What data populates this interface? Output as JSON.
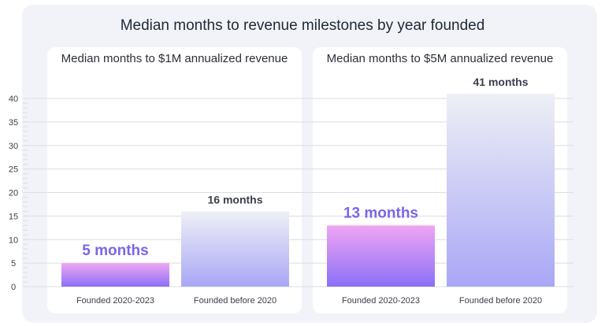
{
  "title": "Median months to revenue milestones by year founded",
  "colors": {
    "highlight_top": "#f0a6f3",
    "highlight_bottom": "#8a70f6",
    "highlight_label": "#7a66e8",
    "muted_top": "#eef0f5",
    "muted_bottom": "#a9a7f6",
    "muted_label": "#3a3f4a",
    "grid": "#d9dde6"
  },
  "chart_data": {
    "type": "bar",
    "ylim": [
      0,
      40
    ],
    "yticks": [
      0,
      5,
      10,
      15,
      20,
      25,
      30,
      35,
      40
    ],
    "panels": [
      {
        "title": "Median months to $1M annualized revenue",
        "categories": [
          "Founded 2020-2023",
          "Founded before 2020"
        ],
        "values": [
          5,
          16
        ],
        "labels": [
          "5 months",
          "16 months"
        ]
      },
      {
        "title": "Median months to $5M annualized revenue",
        "categories": [
          "Founded 2020-2023",
          "Founded before 2020"
        ],
        "values": [
          13,
          41
        ],
        "labels": [
          "13 months",
          "41 months"
        ]
      }
    ]
  }
}
